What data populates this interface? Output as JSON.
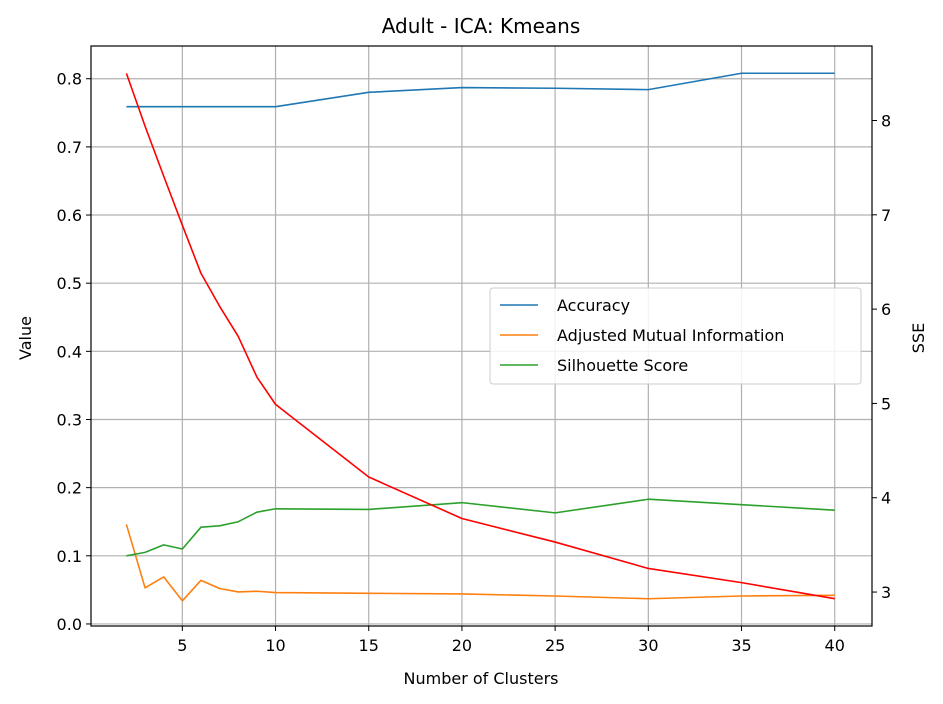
{
  "chart_data": {
    "type": "line",
    "title": "Adult - ICA: Kmeans",
    "xlabel": "Number of Clusters",
    "ylabel": "Value",
    "y2label": "SSE",
    "xlim": [
      0.1,
      42.0
    ],
    "ylim": [
      -0.003,
      0.848
    ],
    "y2lim": [
      2.64,
      8.79
    ],
    "xticks": [
      5,
      10,
      15,
      20,
      25,
      30,
      35,
      40
    ],
    "yticks": [
      0.0,
      0.1,
      0.2,
      0.3,
      0.4,
      0.5,
      0.6,
      0.7,
      0.8
    ],
    "y2ticks": [
      3,
      4,
      5,
      6,
      7,
      8
    ],
    "grid": true,
    "legend_position": "center-right",
    "series": [
      {
        "name": "Accuracy",
        "axis": "left",
        "color": "#1f77b4",
        "x": [
          2,
          3,
          4,
          5,
          6,
          7,
          8,
          9,
          10,
          15,
          20,
          25,
          30,
          35,
          40
        ],
        "y": [
          0.759,
          0.759,
          0.759,
          0.759,
          0.759,
          0.759,
          0.759,
          0.759,
          0.759,
          0.78,
          0.787,
          0.786,
          0.784,
          0.808,
          0.808
        ]
      },
      {
        "name": "Adjusted Mutual Information",
        "axis": "left",
        "color": "#ff7f0e",
        "x": [
          2,
          3,
          4,
          5,
          6,
          7,
          8,
          9,
          10,
          15,
          20,
          25,
          30,
          35,
          40
        ],
        "y": [
          0.146,
          0.053,
          0.069,
          0.034,
          0.064,
          0.052,
          0.047,
          0.048,
          0.046,
          0.045,
          0.044,
          0.041,
          0.037,
          0.041,
          0.042
        ]
      },
      {
        "name": "Silhouette Score",
        "axis": "left",
        "color": "#2ca02c",
        "x": [
          2,
          3,
          4,
          5,
          6,
          7,
          8,
          9,
          10,
          15,
          20,
          25,
          30,
          35,
          40
        ],
        "y": [
          0.1,
          0.105,
          0.116,
          0.11,
          0.142,
          0.144,
          0.15,
          0.164,
          0.169,
          0.168,
          0.178,
          0.163,
          0.183,
          0.175,
          0.167
        ]
      },
      {
        "axis": "right",
        "color": "#ff0000",
        "x": [
          2,
          3,
          4,
          5,
          6,
          7,
          8,
          9,
          10,
          15,
          20,
          25,
          30,
          35,
          40
        ],
        "y": [
          8.5,
          7.94,
          7.41,
          6.89,
          6.38,
          6.03,
          5.71,
          5.28,
          4.99,
          4.22,
          3.78,
          3.53,
          3.25,
          3.1,
          2.93
        ]
      }
    ]
  }
}
